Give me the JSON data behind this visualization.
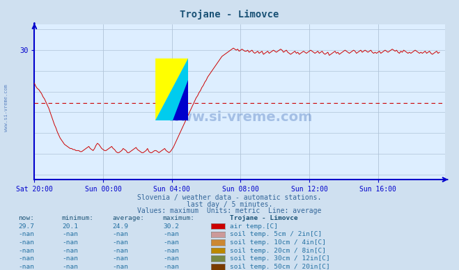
{
  "title": "Trojane - Limovce",
  "title_color": "#1a5276",
  "bg_color": "#cfe0f0",
  "plot_bg_color": "#ddeeff",
  "line_color": "#cc0000",
  "axis_color": "#0000cc",
  "grid_color": "#b0c4d8",
  "avg_line_color": "#cc0000",
  "avg_value": 24.9,
  "y_min": 17.5,
  "y_max": 32.5,
  "subtitle1": "Slovenia / weather data - automatic stations.",
  "subtitle2": "last day / 5 minutes.",
  "subtitle3": "Values: maximum  Units: metric  Line: average",
  "subtitle_color": "#336699",
  "x_labels": [
    "Sat 20:00",
    "Sun 00:00",
    "Sun 04:00",
    "Sun 08:00",
    "Sun 12:00",
    "Sun 16:00"
  ],
  "watermark": "www.si-vreme.com",
  "watermark_color": "#2255aa",
  "side_text": "www.si-vreme.com",
  "now_label": "now:",
  "min_label": "minimum:",
  "avg_label": "average:",
  "max_label": "maximum:",
  "station_label": "Trojane - Limovce",
  "table_header_color": "#1a5276",
  "table_data_color": "#2471a3",
  "legend_items": [
    {
      "label": "air temp.[C]",
      "color": "#cc0000",
      "now": "29.7",
      "min": "20.1",
      "avg": "24.9",
      "max": "30.2"
    },
    {
      "label": "soil temp. 5cm / 2in[C]",
      "color": "#cc9999",
      "now": "-nan",
      "min": "-nan",
      "avg": "-nan",
      "max": "-nan"
    },
    {
      "label": "soil temp. 10cm / 4in[C]",
      "color": "#cc8833",
      "now": "-nan",
      "min": "-nan",
      "avg": "-nan",
      "max": "-nan"
    },
    {
      "label": "soil temp. 20cm / 8in[C]",
      "color": "#bb8800",
      "now": "-nan",
      "min": "-nan",
      "avg": "-nan",
      "max": "-nan"
    },
    {
      "label": "soil temp. 30cm / 12in[C]",
      "color": "#778844",
      "now": "-nan",
      "min": "-nan",
      "avg": "-nan",
      "max": "-nan"
    },
    {
      "label": "soil temp. 50cm / 20in[C]",
      "color": "#7a3b00",
      "now": "-nan",
      "min": "-nan",
      "avg": "-nan",
      "max": "-nan"
    }
  ],
  "temp_data": [
    26.8,
    26.5,
    26.3,
    26.2,
    26.0,
    25.8,
    25.5,
    25.3,
    25.0,
    24.7,
    24.4,
    24.0,
    23.6,
    23.2,
    22.8,
    22.5,
    22.1,
    21.8,
    21.5,
    21.3,
    21.1,
    20.9,
    20.8,
    20.7,
    20.6,
    20.5,
    20.5,
    20.4,
    20.4,
    20.3,
    20.3,
    20.3,
    20.2,
    20.2,
    20.3,
    20.4,
    20.5,
    20.6,
    20.7,
    20.5,
    20.4,
    20.3,
    20.5,
    20.8,
    21.0,
    20.9,
    20.7,
    20.5,
    20.4,
    20.3,
    20.3,
    20.4,
    20.5,
    20.6,
    20.7,
    20.5,
    20.4,
    20.2,
    20.1,
    20.1,
    20.2,
    20.3,
    20.5,
    20.4,
    20.3,
    20.1,
    20.1,
    20.2,
    20.3,
    20.4,
    20.5,
    20.6,
    20.4,
    20.3,
    20.2,
    20.1,
    20.1,
    20.2,
    20.3,
    20.5,
    20.2,
    20.1,
    20.1,
    20.2,
    20.3,
    20.3,
    20.2,
    20.1,
    20.2,
    20.3,
    20.4,
    20.5,
    20.3,
    20.2,
    20.1,
    20.2,
    20.4,
    20.6,
    20.9,
    21.2,
    21.5,
    21.8,
    22.1,
    22.4,
    22.7,
    23.0,
    23.3,
    23.6,
    23.9,
    24.2,
    24.5,
    24.8,
    25.1,
    25.4,
    25.6,
    25.9,
    26.1,
    26.4,
    26.6,
    26.9,
    27.1,
    27.4,
    27.6,
    27.8,
    28.0,
    28.2,
    28.4,
    28.6,
    28.8,
    29.0,
    29.2,
    29.4,
    29.5,
    29.6,
    29.7,
    29.8,
    29.9,
    30.0,
    30.1,
    30.2,
    30.1,
    30.0,
    30.1,
    29.9,
    30.0,
    30.1,
    30.0,
    29.9,
    29.9,
    30.0,
    29.8,
    29.9,
    30.0,
    29.8,
    29.7,
    29.8,
    29.9,
    29.7,
    29.8,
    29.9,
    29.6,
    29.7,
    29.8,
    29.9,
    29.7,
    29.8,
    29.9,
    30.0,
    29.9,
    29.8,
    29.9,
    30.0,
    30.1,
    30.0,
    29.8,
    29.9,
    30.0,
    29.8,
    29.7,
    29.6,
    29.7,
    29.8,
    29.9,
    29.7,
    29.8,
    29.6,
    29.7,
    29.8,
    29.9,
    29.8,
    29.7,
    29.8,
    29.9,
    30.0,
    29.9,
    29.8,
    29.7,
    29.8,
    29.9,
    29.7,
    29.8,
    29.9,
    29.7,
    29.6,
    29.7,
    29.8,
    29.5,
    29.6,
    29.7,
    29.8,
    29.9,
    29.7,
    29.8,
    29.6,
    29.7,
    29.8,
    29.9,
    30.0,
    29.9,
    29.8,
    29.7,
    29.8,
    29.9,
    30.0,
    29.9,
    29.7,
    29.8,
    29.9,
    30.0,
    29.8,
    29.9,
    30.0,
    29.9,
    29.8,
    29.9,
    30.0,
    29.8,
    29.7,
    29.8,
    29.7,
    29.8,
    29.9,
    29.7,
    29.8,
    29.9,
    30.0,
    29.9,
    29.8,
    29.9,
    30.0,
    30.1,
    30.0,
    29.9,
    30.0,
    29.8,
    29.7,
    29.9,
    29.8,
    30.0,
    29.9,
    29.8,
    29.7,
    29.8,
    29.7,
    29.8,
    29.9,
    30.0,
    29.9,
    29.8,
    29.7,
    29.8,
    29.7,
    29.8,
    29.9,
    29.7,
    29.8,
    29.9,
    29.7,
    29.6,
    29.7,
    29.8,
    29.9,
    29.7,
    29.8
  ],
  "n_total": 288,
  "x_tick_positions": [
    0,
    48,
    96,
    144,
    192,
    240
  ]
}
